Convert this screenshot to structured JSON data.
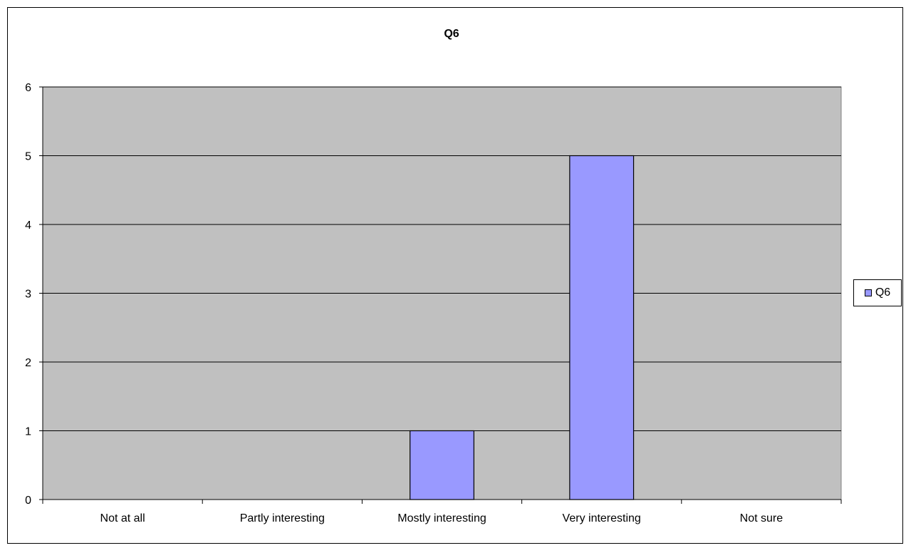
{
  "chart_data": {
    "type": "bar",
    "title": "Q6",
    "categories": [
      "Not at all",
      "Partly interesting",
      "Mostly interesting",
      "Very interesting",
      "Not sure"
    ],
    "series": [
      {
        "name": "Q6",
        "values": [
          0,
          0,
          1,
          5,
          0
        ],
        "color": "#9999ff"
      }
    ],
    "ylim": [
      0,
      6
    ],
    "yticks": [
      0,
      1,
      2,
      3,
      4,
      5,
      6
    ],
    "grid": true,
    "plot_background": "#c0c0c0",
    "legend_position": "right"
  }
}
